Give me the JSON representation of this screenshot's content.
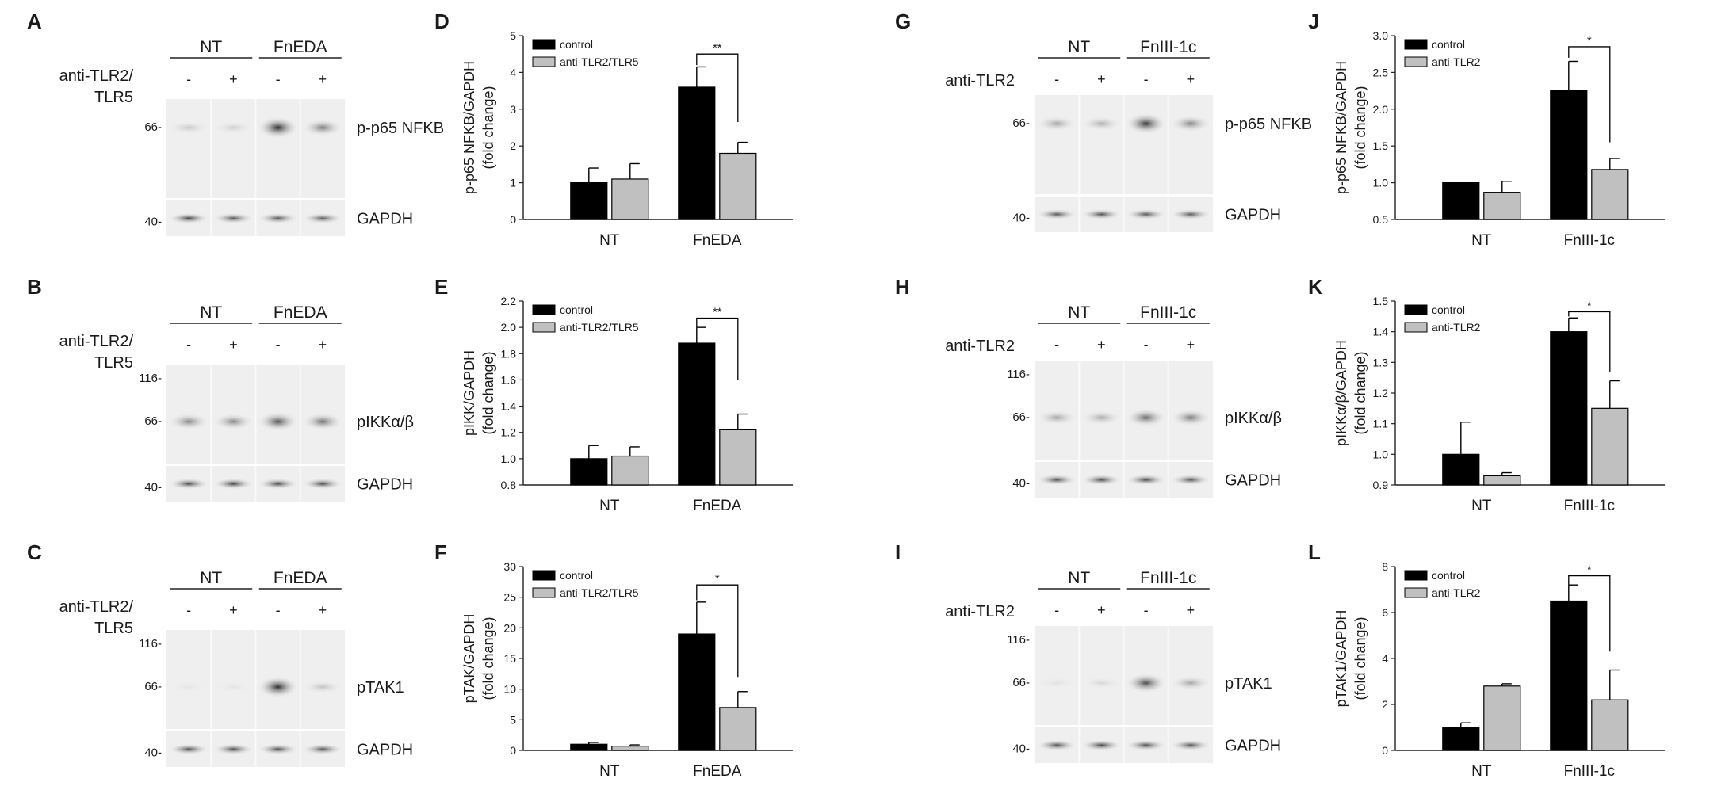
{
  "blots": [
    {
      "letter": "A",
      "groups": [
        "NT",
        "FnEDA"
      ],
      "treatment_label": [
        "anti-TLR2/",
        "TLR5"
      ],
      "lane_signs": [
        "-",
        "+",
        "-",
        "+"
      ],
      "strips": [
        {
          "name": "p-p65 NFKB",
          "markers": [
            "66-"
          ],
          "intensity": [
            0.18,
            0.14,
            0.95,
            0.55
          ]
        },
        {
          "name": "GAPDH",
          "markers": [
            "40-"
          ],
          "intensity": [
            0.85,
            0.75,
            0.75,
            0.72
          ]
        }
      ]
    },
    {
      "letter": "B",
      "groups": [
        "NT",
        "FnEDA"
      ],
      "treatment_label": [
        "anti-TLR2/",
        "TLR5"
      ],
      "lane_signs": [
        "-",
        "+",
        "-",
        "+"
      ],
      "strips": [
        {
          "name": "pIKKα/β",
          "markers": [
            "116-",
            "66-"
          ],
          "intensity": [
            0.5,
            0.5,
            0.75,
            0.6
          ]
        },
        {
          "name": "GAPDH",
          "markers": [
            "40-"
          ],
          "intensity": [
            0.8,
            0.85,
            0.8,
            0.8
          ]
        }
      ]
    },
    {
      "letter": "C",
      "groups": [
        "NT",
        "FnEDA"
      ],
      "treatment_label": [
        "anti-TLR2/",
        "TLR5"
      ],
      "lane_signs": [
        "-",
        "+",
        "-",
        "+"
      ],
      "strips": [
        {
          "name": "pTAK1",
          "markers": [
            "116-",
            "66-"
          ],
          "intensity": [
            0.03,
            0.03,
            0.95,
            0.2
          ]
        },
        {
          "name": "GAPDH",
          "markers": [
            "40-"
          ],
          "intensity": [
            0.78,
            0.8,
            0.78,
            0.76
          ]
        }
      ]
    },
    {
      "letter": "G",
      "groups": [
        "NT",
        "FnIII-1c"
      ],
      "treatment_label": [
        "anti-TLR2"
      ],
      "lane_signs": [
        "-",
        "+",
        "-",
        "+"
      ],
      "strips": [
        {
          "name": "p-p65 NFKB",
          "markers": [
            "66-"
          ],
          "intensity": [
            0.35,
            0.3,
            0.9,
            0.5
          ]
        },
        {
          "name": "GAPDH",
          "markers": [
            "40-"
          ],
          "intensity": [
            0.75,
            0.78,
            0.75,
            0.74
          ]
        }
      ]
    },
    {
      "letter": "H",
      "groups": [
        "NT",
        "FnIII-1c"
      ],
      "treatment_label": [
        "anti-TLR2"
      ],
      "lane_signs": [
        "-",
        "+",
        "-",
        "+"
      ],
      "strips": [
        {
          "name": "pIKKα/β",
          "markers": [
            "116-",
            "66-"
          ],
          "intensity": [
            0.35,
            0.32,
            0.65,
            0.55
          ]
        },
        {
          "name": "GAPDH",
          "markers": [
            "40-"
          ],
          "intensity": [
            0.78,
            0.8,
            0.82,
            0.75
          ]
        }
      ]
    },
    {
      "letter": "I",
      "groups": [
        "NT",
        "FnIII-1c"
      ],
      "treatment_label": [
        "anti-TLR2"
      ],
      "lane_signs": [
        "-",
        "+",
        "-",
        "+"
      ],
      "strips": [
        {
          "name": "pTAK1",
          "markers": [
            "116-",
            "66-"
          ],
          "intensity": [
            0.05,
            0.1,
            0.8,
            0.35
          ]
        },
        {
          "name": "GAPDH",
          "markers": [
            "40-"
          ],
          "intensity": [
            0.78,
            0.85,
            0.8,
            0.76
          ]
        }
      ]
    }
  ],
  "chart_data": [
    {
      "letter": "D",
      "type": "bar",
      "categories": [
        "NT",
        "FnEDA"
      ],
      "ylabel": [
        "p-p65 NFKB/GAPDH",
        "(fold change)"
      ],
      "ylim": [
        0,
        5
      ],
      "yticks": [
        "0",
        "1",
        "2",
        "3",
        "4",
        "5"
      ],
      "series": [
        {
          "name": "control",
          "color": "#000000",
          "values": [
            1.0,
            3.6
          ],
          "errors": [
            0.4,
            0.55
          ]
        },
        {
          "name": "anti-TLR2/TLR5",
          "color": "#c0c0c0",
          "values": [
            1.1,
            1.8
          ],
          "errors": [
            0.42,
            0.3
          ]
        }
      ],
      "significance": {
        "label": "**",
        "category": 1,
        "top": 4.5,
        "left_end": 4.2,
        "right_end": 2.65
      },
      "legend": "top-left"
    },
    {
      "letter": "E",
      "type": "bar",
      "categories": [
        "NT",
        "FnEDA"
      ],
      "ylabel": [
        "pIKK/GAPDH",
        "(fold change)"
      ],
      "ylim": [
        0.8,
        2.2
      ],
      "yticks": [
        "0.8",
        "1.0",
        "1.2",
        "1.4",
        "1.6",
        "1.8",
        "2.0",
        "2.2"
      ],
      "series": [
        {
          "name": "control",
          "color": "#000000",
          "values": [
            1.0,
            1.88
          ],
          "errors": [
            0.1,
            0.12
          ]
        },
        {
          "name": "anti-TLR2/TLR5",
          "color": "#c0c0c0",
          "values": [
            1.02,
            1.22
          ],
          "errors": [
            0.07,
            0.12
          ]
        }
      ],
      "significance": {
        "label": "**",
        "category": 1,
        "top": 2.07,
        "left_end": 2.0,
        "right_end": 1.6
      },
      "legend": "top-left"
    },
    {
      "letter": "F",
      "type": "bar",
      "categories": [
        "NT",
        "FnEDA"
      ],
      "ylabel": [
        "pTAK/GAPDH",
        "(fold change)"
      ],
      "ylim": [
        0,
        30
      ],
      "yticks": [
        "0",
        "5",
        "10",
        "15",
        "20",
        "25",
        "30"
      ],
      "series": [
        {
          "name": "control",
          "color": "#000000",
          "values": [
            1.0,
            19.0
          ],
          "errors": [
            0.3,
            5.2
          ]
        },
        {
          "name": "anti-TLR2/TLR5",
          "color": "#c0c0c0",
          "values": [
            0.7,
            7.0
          ],
          "errors": [
            0.2,
            2.6
          ]
        }
      ],
      "significance": {
        "label": "*",
        "category": 1,
        "top": 27.0,
        "left_end": 24.5,
        "right_end": 12.0
      },
      "legend": "top-left"
    },
    {
      "letter": "J",
      "type": "bar",
      "categories": [
        "NT",
        "FnIII-1c"
      ],
      "ylabel": [
        "p-p65 NFKB/GAPDH",
        "(fold change)"
      ],
      "ylim": [
        0.5,
        3.0
      ],
      "yticks": [
        "0.5",
        "1.0",
        "1.5",
        "2.0",
        "2.5",
        "3.0"
      ],
      "series": [
        {
          "name": "control",
          "color": "#000000",
          "values": [
            1.0,
            2.25
          ],
          "errors": [
            0.0,
            0.4
          ]
        },
        {
          "name": "anti-TLR2",
          "color": "#c0c0c0",
          "values": [
            0.87,
            1.18
          ],
          "errors": [
            0.15,
            0.15
          ]
        }
      ],
      "significance": {
        "label": "*",
        "category": 1,
        "top": 2.85,
        "left_end": 2.7,
        "right_end": 1.55
      },
      "legend": "top-left"
    },
    {
      "letter": "K",
      "type": "bar",
      "categories": [
        "NT",
        "FnIII-1c"
      ],
      "ylabel": [
        "pIKKα/β/GAPDH",
        "(fold change)"
      ],
      "ylim": [
        0.9,
        1.5
      ],
      "yticks": [
        "0.9",
        "1.0",
        "1.1",
        "1.2",
        "1.3",
        "1.4",
        "1.5"
      ],
      "series": [
        {
          "name": "control",
          "color": "#000000",
          "values": [
            1.0,
            1.4
          ],
          "errors": [
            0.105,
            0.045
          ]
        },
        {
          "name": "anti-TLR2",
          "color": "#c0c0c0",
          "values": [
            0.93,
            1.15
          ],
          "errors": [
            0.01,
            0.09
          ]
        }
      ],
      "significance": {
        "label": "*",
        "category": 1,
        "top": 1.465,
        "left_end": 1.45,
        "right_end": 1.27
      },
      "legend": "top-left"
    },
    {
      "letter": "L",
      "type": "bar",
      "categories": [
        "NT",
        "FnIII-1c"
      ],
      "ylabel": [
        "pTAK1/GAPDH",
        "(fold change)"
      ],
      "ylim": [
        0,
        8
      ],
      "yticks": [
        "0",
        "2",
        "4",
        "6",
        "8"
      ],
      "series": [
        {
          "name": "control",
          "color": "#000000",
          "values": [
            1.0,
            6.5
          ],
          "errors": [
            0.2,
            0.7
          ]
        },
        {
          "name": "anti-TLR2",
          "color": "#c0c0c0",
          "values": [
            2.8,
            2.2
          ],
          "errors": [
            0.1,
            1.3
          ]
        }
      ],
      "significance": {
        "label": "*",
        "category": 1,
        "top": 7.6,
        "left_end": 7.2,
        "right_end": 4.3
      },
      "legend": "top-left"
    }
  ]
}
